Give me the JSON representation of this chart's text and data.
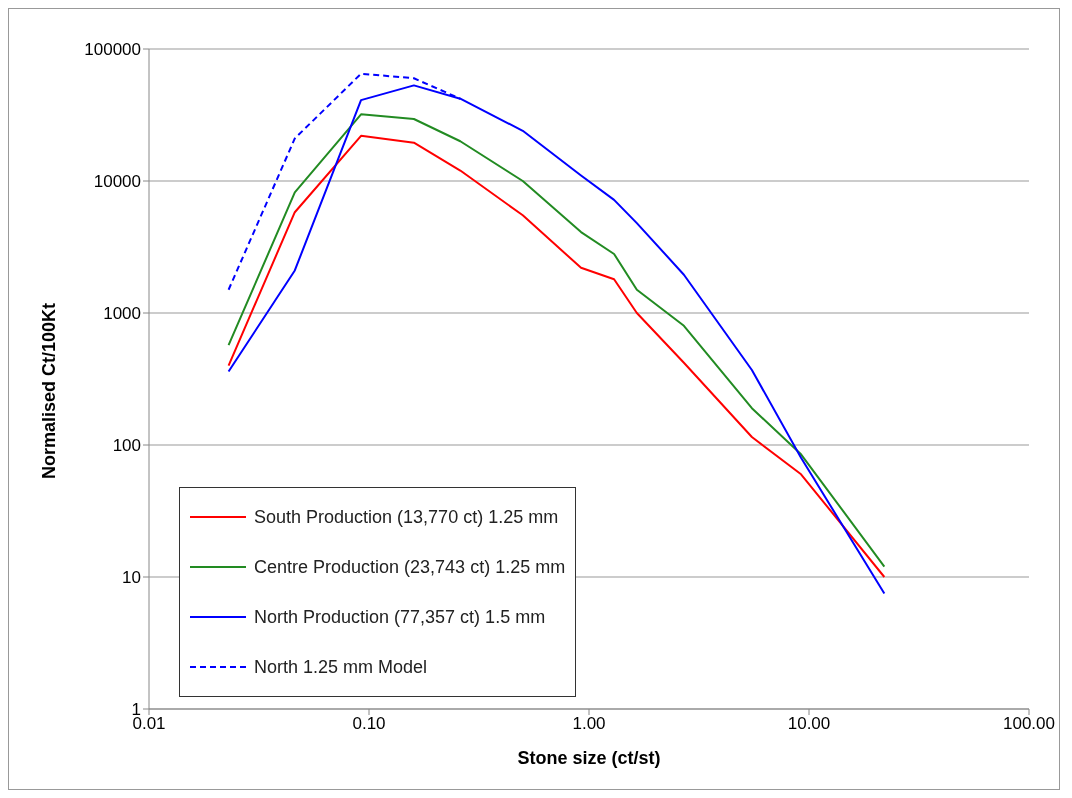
{
  "chart_data": {
    "type": "line",
    "xlabel": "Stone size (ct/st)",
    "ylabel": "Normalised Ct/100Kt",
    "log": "xy",
    "grid": "y",
    "legend": "bottom left",
    "line_style": "solid",
    "marker": "none",
    "xlim": [
      0.01,
      100
    ],
    "xticks": [
      {
        "value": 0.01,
        "label": "0.01"
      },
      {
        "value": 0.1,
        "label": "0.10"
      },
      {
        "value": 1,
        "label": "1.00"
      },
      {
        "value": 10,
        "label": "10.00"
      },
      {
        "value": 100,
        "label": "100.00"
      }
    ],
    "ylim": [
      1,
      100000
    ],
    "yticks": [
      1,
      10,
      100,
      1000,
      10000,
      100000
    ],
    "x": [
      0.023,
      0.046,
      0.092,
      0.16,
      0.26,
      0.5,
      0.92,
      1.3,
      1.65,
      2.7,
      5.5,
      9.2,
      22
    ],
    "series": [
      {
        "name": "South Production (13,770 ct) 1.25 mm",
        "color": "#ff0000",
        "values": [
          400,
          5800,
          22000,
          19500,
          12000,
          5500,
          2200,
          1800,
          1000,
          420,
          115,
          60,
          10
        ]
      },
      {
        "name": "Centre Production (23,743 ct) 1.25 mm",
        "color": "#228b22",
        "values": [
          570,
          8200,
          32000,
          29500,
          20000,
          10000,
          4100,
          2800,
          1500,
          800,
          190,
          85,
          12
        ]
      },
      {
        "name": "North Production (77,357 ct) 1.5 mm",
        "color": "#0000ff",
        "values": [
          360,
          2100,
          41000,
          53000,
          42000,
          24000,
          11000,
          7200,
          4800,
          1950,
          370,
          80,
          7.5
        ]
      },
      {
        "name": "North 1.25 mm Model",
        "color": "#0000ff",
        "line_style": "dashed",
        "x": [
          0.023,
          0.046,
          0.092,
          0.16,
          0.26
        ],
        "values": [
          1500,
          21000,
          65000,
          60000,
          42000
        ]
      }
    ]
  }
}
